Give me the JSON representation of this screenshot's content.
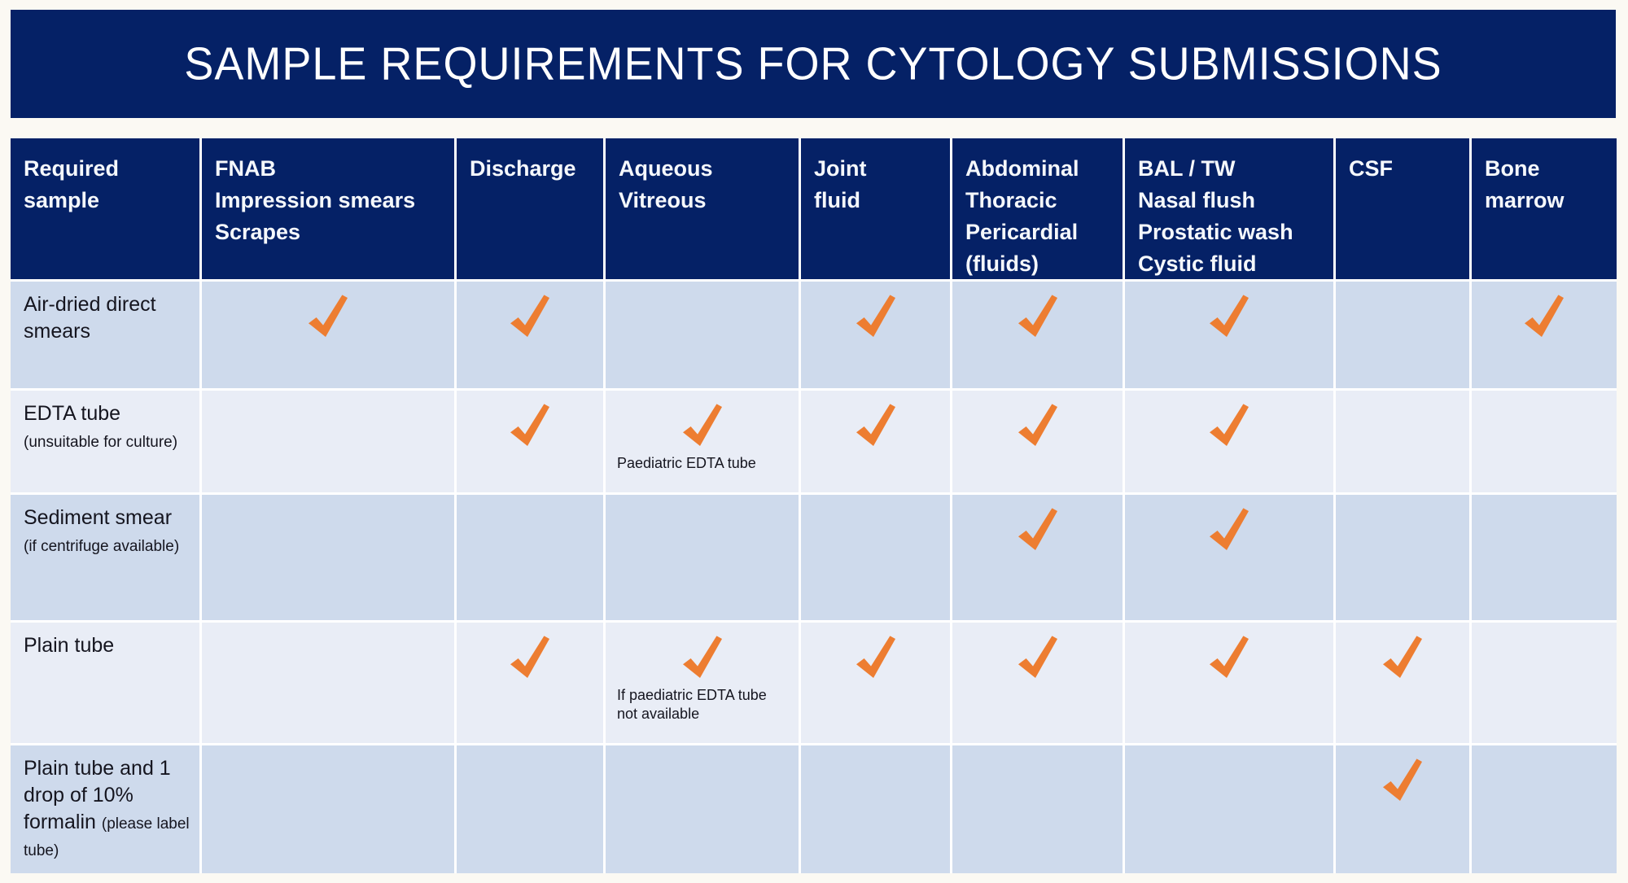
{
  "title": "SAMPLE REQUIREMENTS FOR CYTOLOGY SUBMISSIONS",
  "colors": {
    "navy": "#052166",
    "row_dark": "#CEDAEC",
    "row_light": "#E9EDF6",
    "orange": "#ED7D31",
    "page_bg": "#FBF9F3"
  },
  "icons": {
    "check": "check-icon"
  },
  "columns": [
    {
      "label": "Required\nsample"
    },
    {
      "label": "FNAB\nImpression smears\nScrapes"
    },
    {
      "label": "Discharge"
    },
    {
      "label": "Aqueous\nVitreous"
    },
    {
      "label": "Joint\nfluid"
    },
    {
      "label": "Abdominal\nThoracic\nPericardial\n(fluids)"
    },
    {
      "label": "BAL / TW\nNasal flush\nProstatic wash\nCystic fluid"
    },
    {
      "label": "CSF"
    },
    {
      "label": "Bone\nmarrow"
    }
  ],
  "rows": [
    {
      "label": "Air-dried direct smears",
      "label_small": "",
      "cells": [
        {
          "check": true
        },
        {
          "check": true
        },
        {
          "check": false
        },
        {
          "check": true
        },
        {
          "check": true
        },
        {
          "check": true
        },
        {
          "check": false
        },
        {
          "check": true
        }
      ]
    },
    {
      "label": "EDTA tube",
      "label_small": "(unsuitable for culture)",
      "cells": [
        {
          "check": false
        },
        {
          "check": true
        },
        {
          "check": true,
          "note": "Paediatric EDTA tube"
        },
        {
          "check": true
        },
        {
          "check": true
        },
        {
          "check": true
        },
        {
          "check": false
        },
        {
          "check": false
        }
      ]
    },
    {
      "label": "Sediment smear",
      "label_small": "(if centrifuge available)",
      "cells": [
        {
          "check": false
        },
        {
          "check": false
        },
        {
          "check": false
        },
        {
          "check": false
        },
        {
          "check": true
        },
        {
          "check": true
        },
        {
          "check": false
        },
        {
          "check": false
        }
      ]
    },
    {
      "label": "Plain tube",
      "label_small": "",
      "cells": [
        {
          "check": false
        },
        {
          "check": true
        },
        {
          "check": true,
          "note": "If paediatric EDTA tube not available"
        },
        {
          "check": true
        },
        {
          "check": true
        },
        {
          "check": true
        },
        {
          "check": true
        },
        {
          "check": false
        }
      ]
    },
    {
      "label": "Plain tube and 1 drop of 10% formalin",
      "label_small": "(please label tube)",
      "cells": [
        {
          "check": false
        },
        {
          "check": false
        },
        {
          "check": false
        },
        {
          "check": false
        },
        {
          "check": false
        },
        {
          "check": false
        },
        {
          "check": true
        },
        {
          "check": false
        }
      ]
    }
  ]
}
